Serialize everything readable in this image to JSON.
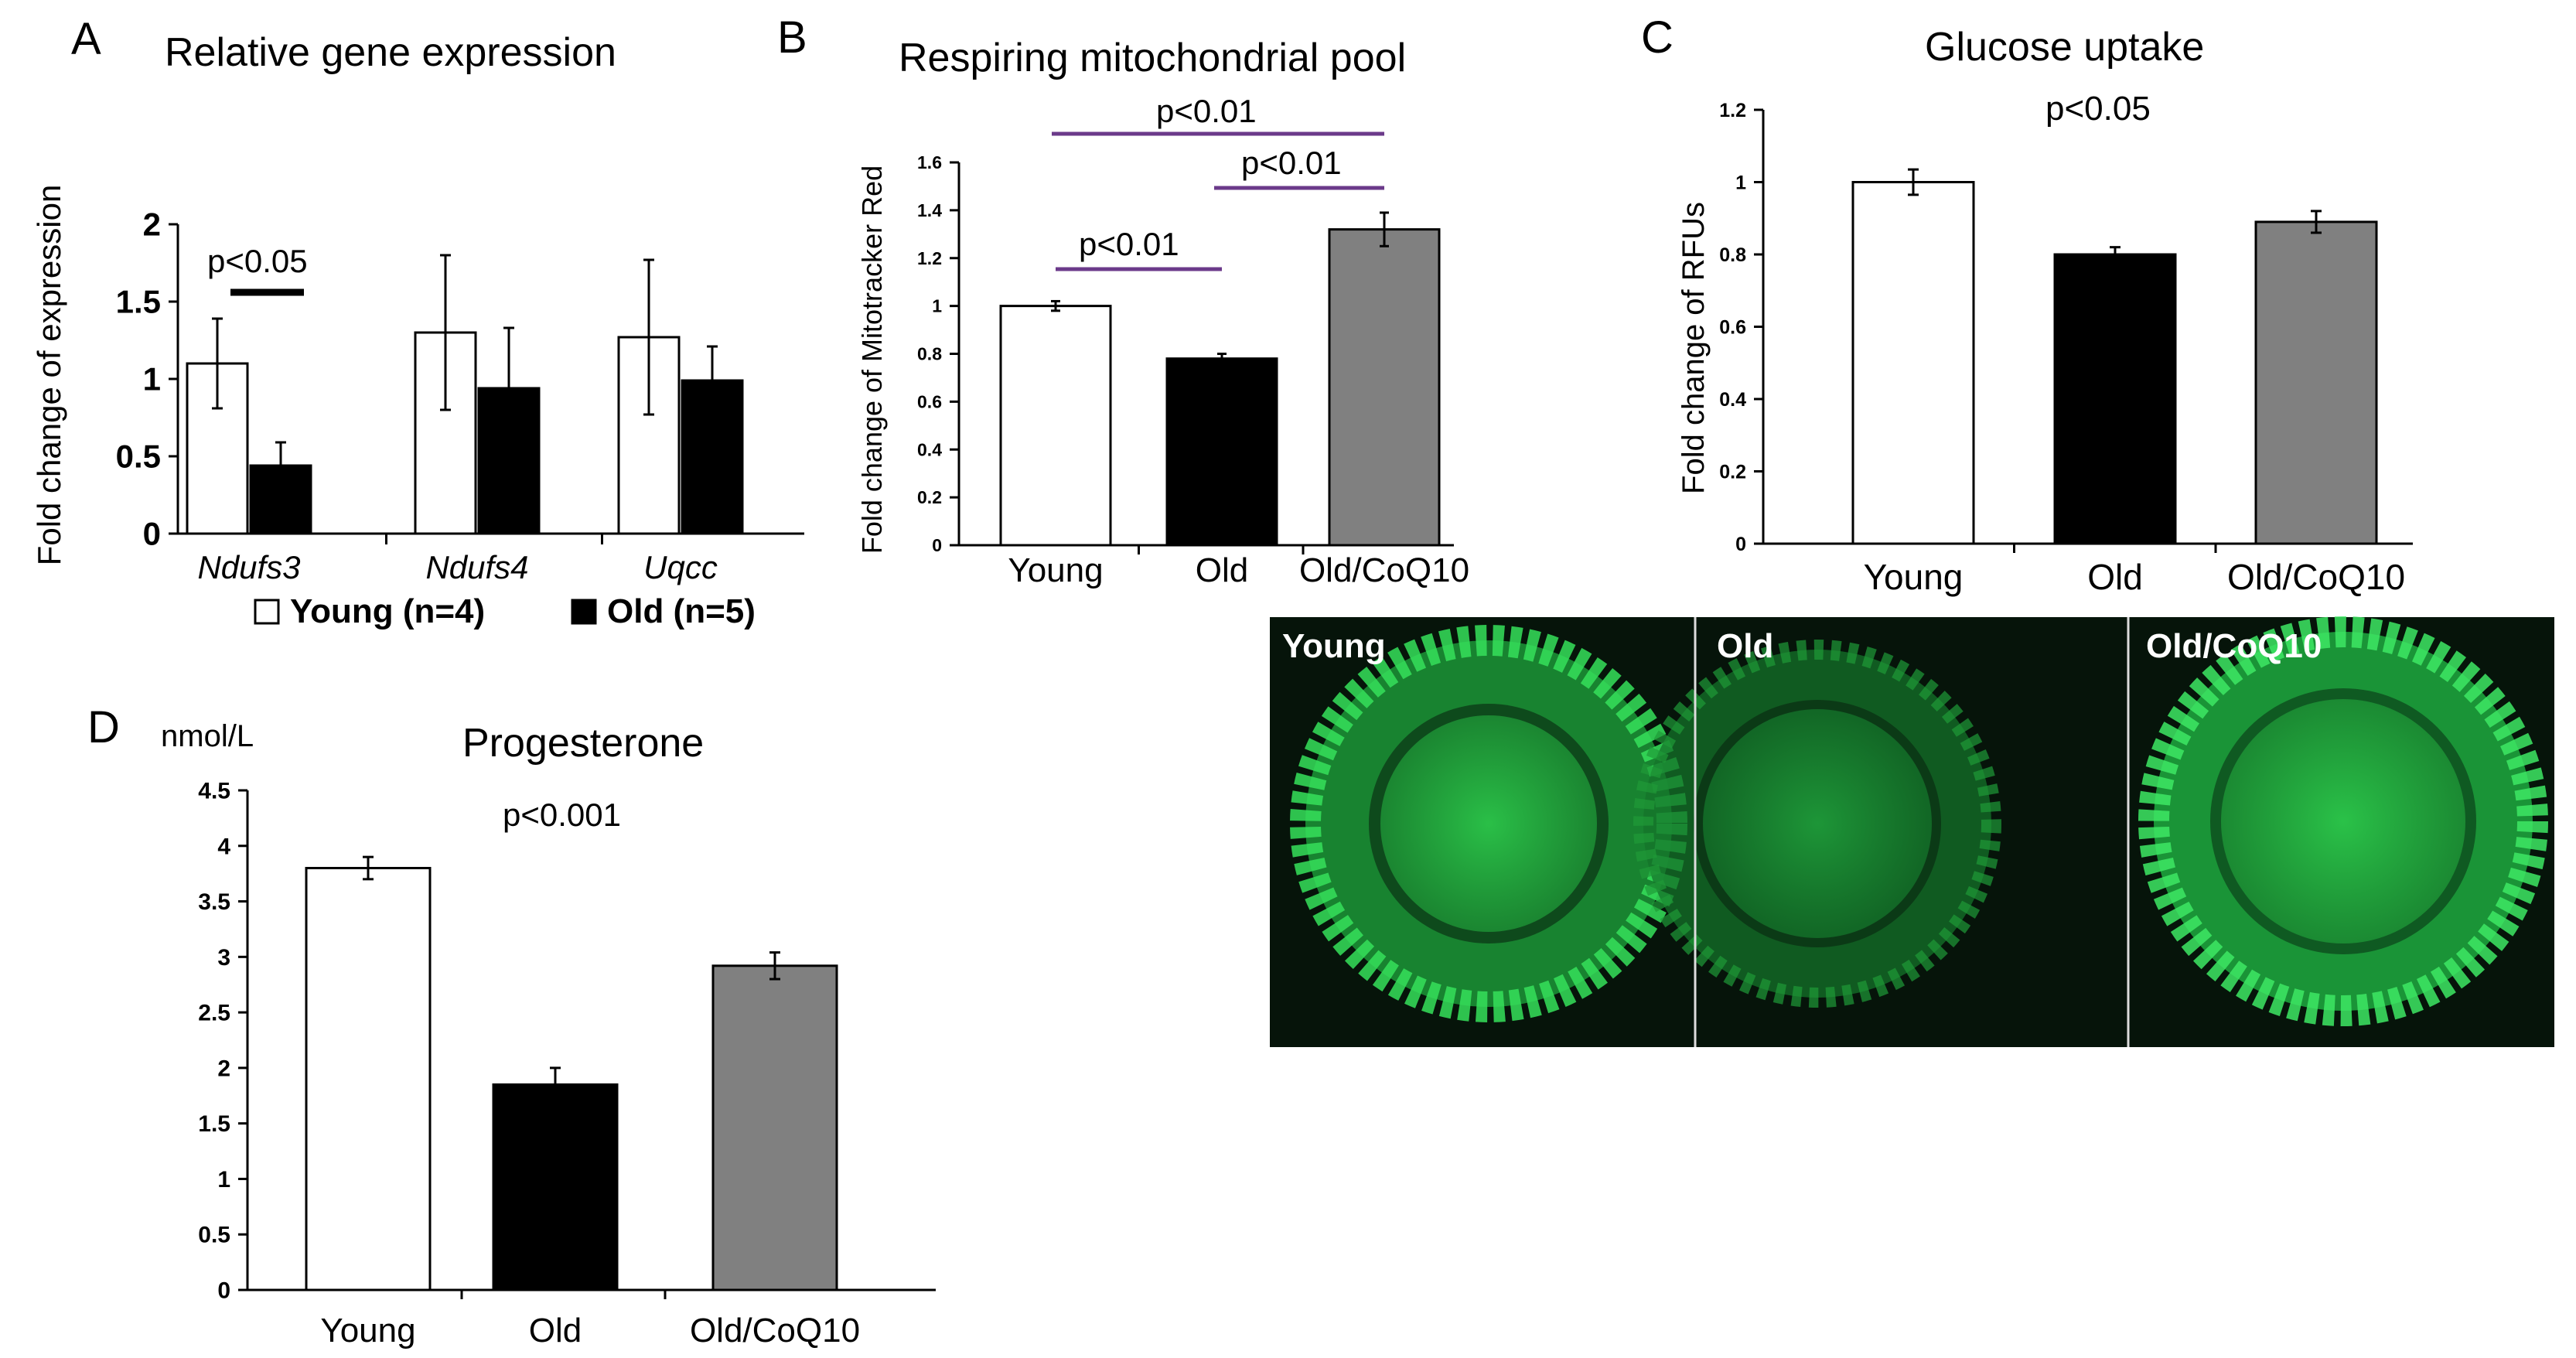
{
  "colors": {
    "young_fill": "#ffffff",
    "old_fill": "#000000",
    "coq10_fill": "#808080",
    "sig_line_purple": "#6b3a8a",
    "axis": "#000000",
    "microscopy_green": "#2fd44f",
    "microscopy_bg": "#06140a"
  },
  "panels": {
    "A": {
      "letter": "A",
      "title": "Relative gene expression",
      "ylabel": "Fold change of expression",
      "sig": [
        {
          "text": "p<0.05"
        }
      ],
      "legend": {
        "young": "Young (n=4)",
        "old": "Old (n=5)"
      }
    },
    "B": {
      "letter": "B",
      "title": "Respiring mitochondrial pool",
      "ylabel": "Fold change of Mitotracker Red",
      "sig": [
        {
          "text": "p<0.01"
        },
        {
          "text": "p<0.01"
        },
        {
          "text": "p<0.01"
        }
      ]
    },
    "C": {
      "letter": "C",
      "title": "Glucose uptake",
      "ylabel": "Fold change of RFUs",
      "sig": [
        {
          "text": "p<0.05"
        }
      ]
    },
    "D": {
      "letter": "D",
      "title": "Progesterone",
      "ylabel": "nmol/L",
      "sig": [
        {
          "text": "p<0.001"
        }
      ]
    }
  },
  "microscopy": {
    "labels": [
      "Young",
      "Old",
      "Old/CoQ10"
    ]
  },
  "chart_data": [
    {
      "panel": "A",
      "type": "bar",
      "categories": [
        "Ndufs3",
        "Ndufs4",
        "Uqcc"
      ],
      "series": [
        {
          "name": "Young (n=4)",
          "values": [
            1.1,
            1.3,
            1.27
          ],
          "errors": [
            0.29,
            0.5,
            0.5
          ]
        },
        {
          "name": "Old (n=5)",
          "values": [
            0.44,
            0.94,
            0.99
          ],
          "errors": [
            0.15,
            0.39,
            0.22
          ]
        }
      ],
      "ylim": [
        0,
        2
      ],
      "yticks": [
        0,
        0.5,
        1,
        1.5,
        2
      ],
      "ytick_labels": [
        "0",
        "0.5",
        "1",
        "1.5",
        "2"
      ],
      "title": "Relative gene expression",
      "ylabel": "Fold change of expression"
    },
    {
      "panel": "B",
      "type": "bar",
      "categories": [
        "Young",
        "Old",
        "Old/CoQ10"
      ],
      "values": [
        1.0,
        0.78,
        1.32
      ],
      "errors": [
        0.02,
        0.02,
        0.07
      ],
      "ylim": [
        0,
        1.6
      ],
      "yticks": [
        0,
        0.2,
        0.4,
        0.6,
        0.8,
        1,
        1.2,
        1.4,
        1.6
      ],
      "ytick_labels": [
        "0",
        "0.2",
        "0.4",
        "0.6",
        "0.8",
        "1",
        "1.2",
        "1.4",
        "1.6"
      ],
      "title": "Respiring mitochondrial pool",
      "ylabel": "Fold change of Mitotracker Red"
    },
    {
      "panel": "C",
      "type": "bar",
      "categories": [
        "Young",
        "Old",
        "Old/CoQ10"
      ],
      "values": [
        1.0,
        0.8,
        0.89
      ],
      "errors": [
        0.035,
        0.02,
        0.03
      ],
      "ylim": [
        0,
        1.2
      ],
      "yticks": [
        0,
        0.2,
        0.4,
        0.6,
        0.8,
        1,
        1.2
      ],
      "ytick_labels": [
        "0",
        "0.2",
        "0.4",
        "0.6",
        "0.8",
        "1",
        "1.2"
      ],
      "title": "Glucose uptake",
      "ylabel": "Fold change of RFUs"
    },
    {
      "panel": "D",
      "type": "bar",
      "categories": [
        "Young",
        "Old",
        "Old/CoQ10"
      ],
      "values": [
        3.8,
        1.85,
        2.92
      ],
      "errors": [
        0.1,
        0.15,
        0.12
      ],
      "ylim": [
        0,
        4.5
      ],
      "yticks": [
        0,
        0.5,
        1,
        1.5,
        2,
        2.5,
        3,
        3.5,
        4,
        4.5
      ],
      "ytick_labels": [
        "0",
        "0.5",
        "1",
        "1.5",
        "2",
        "2.5",
        "3",
        "3.5",
        "4",
        "4.5"
      ],
      "title": "Progesterone",
      "ylabel": "nmol/L"
    }
  ]
}
